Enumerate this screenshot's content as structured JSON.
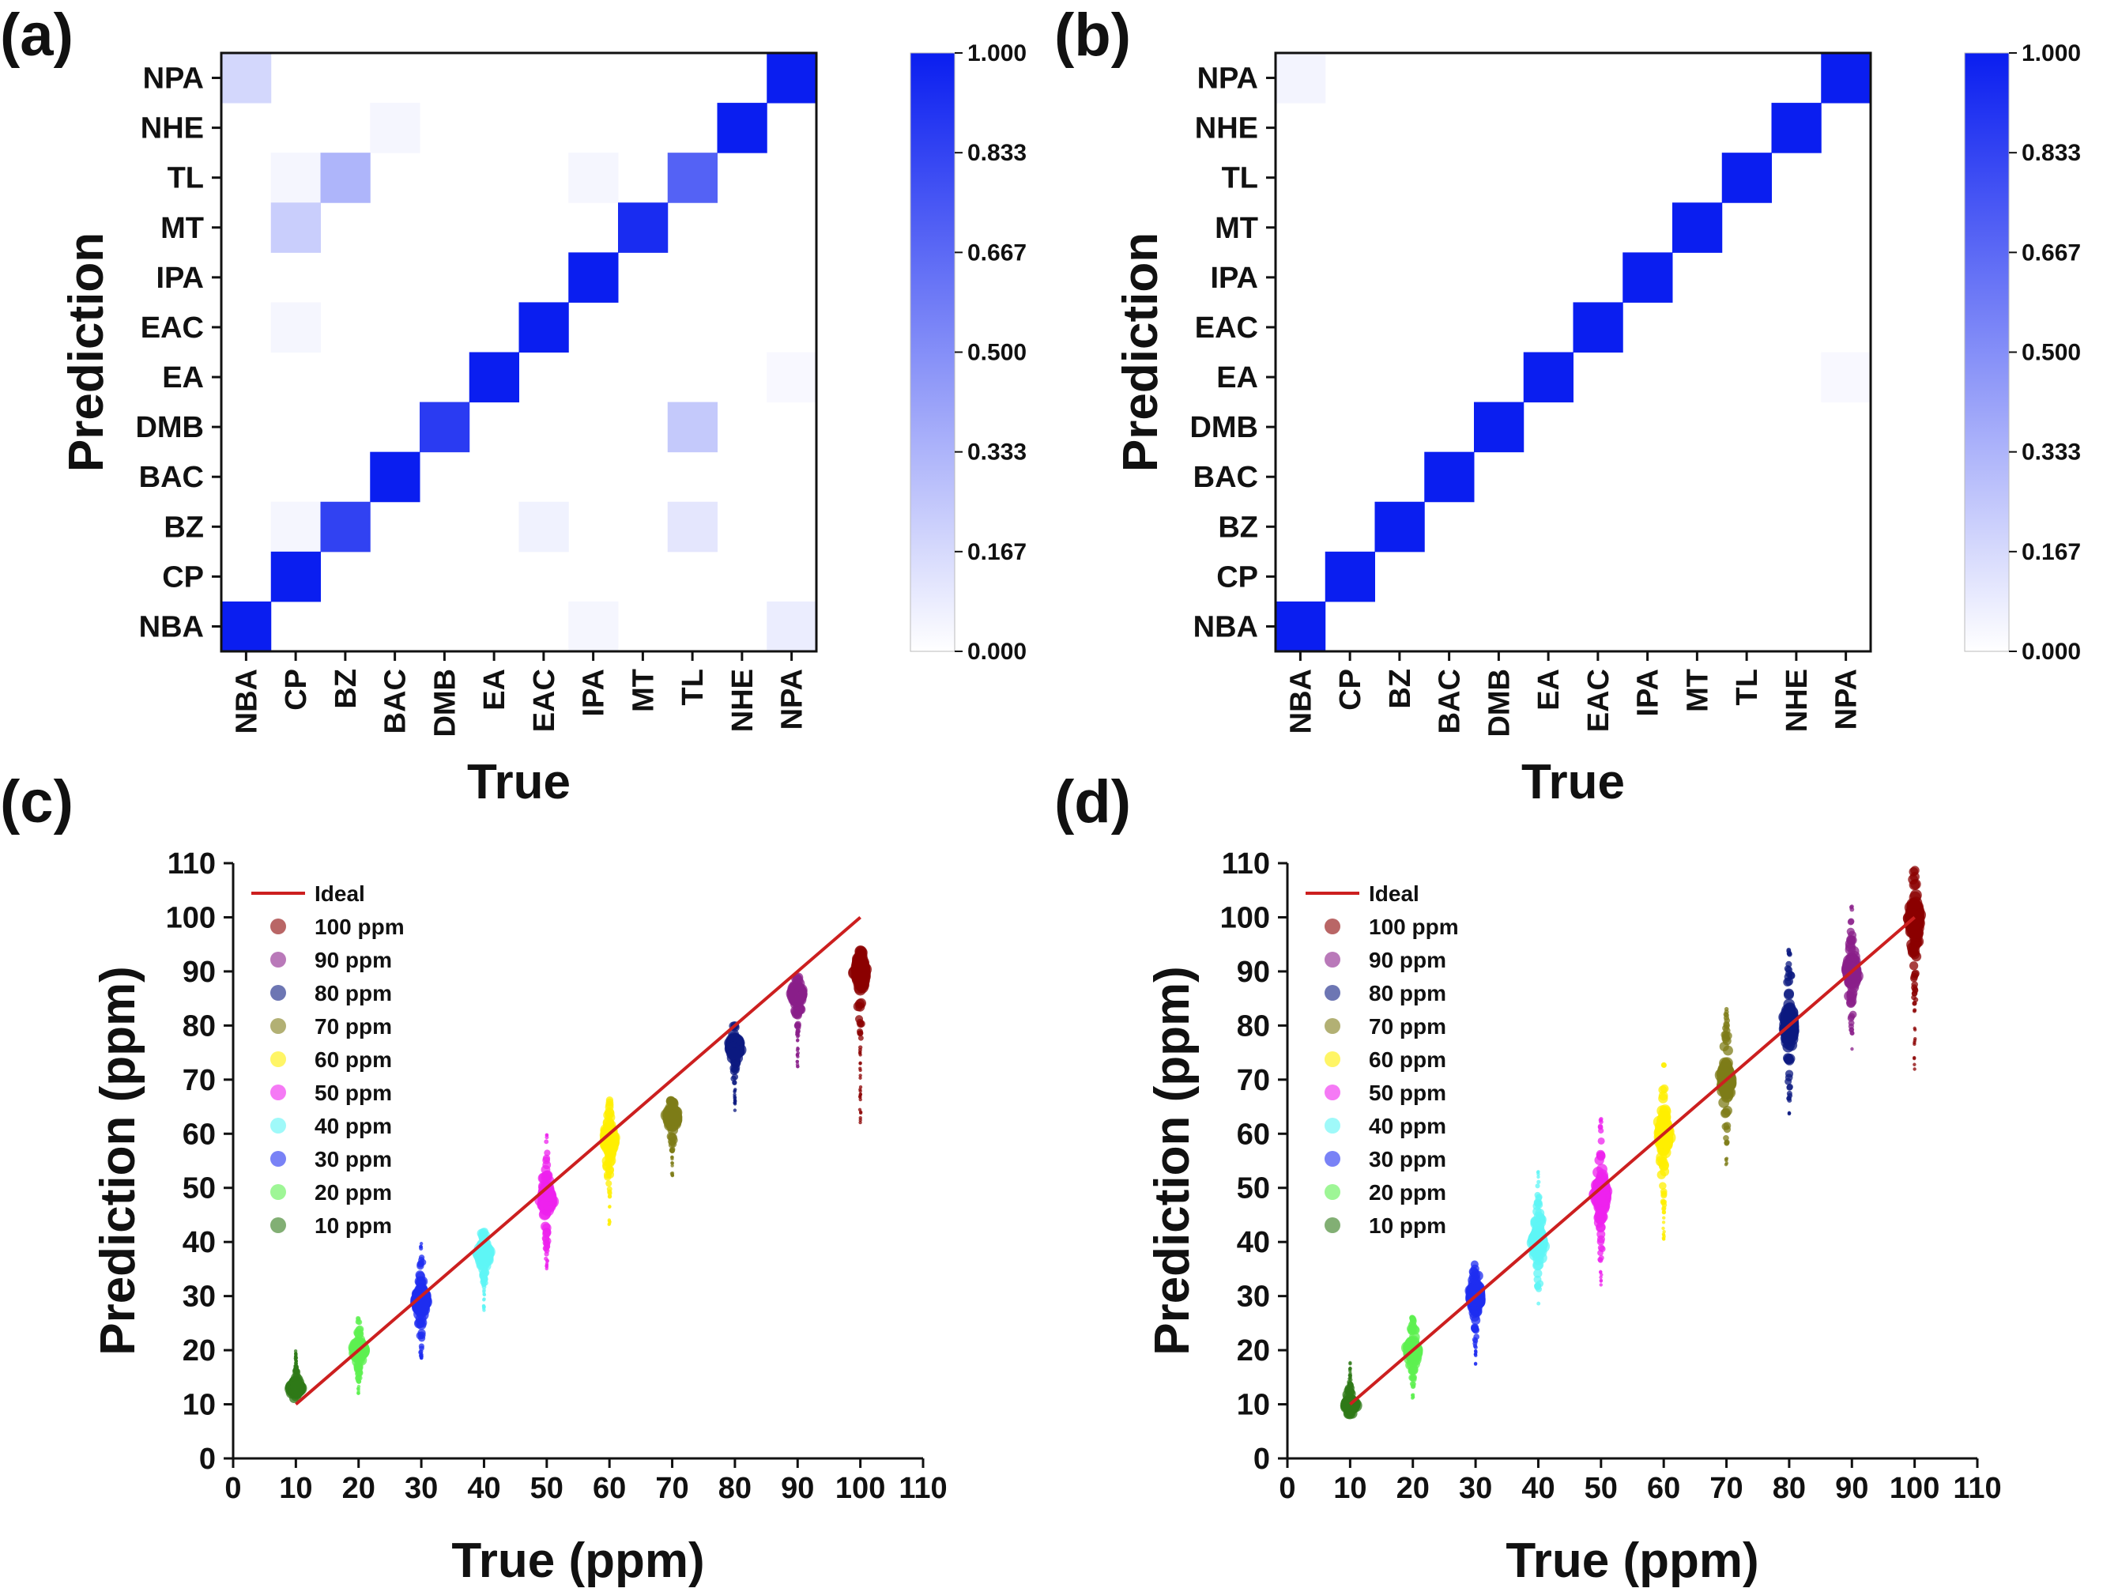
{
  "panel_labels": [
    "(a)",
    "(b)",
    "(c)",
    "(d)"
  ],
  "colors": {
    "cell_max": "#0a1ef0",
    "axis": "#111111",
    "ideal_line": "#cc1f1f",
    "palette": {
      "100 ppm": "#8b0000",
      "90 ppm": "#8a1f8a",
      "80 ppm": "#0c1a80",
      "70 ppm": "#7e7c18",
      "60 ppm": "#ffef00",
      "50 ppm": "#ee22ee",
      "40 ppm": "#5ff5f5",
      "30 ppm": "#1f2ef0",
      "20 ppm": "#5df050",
      "10 ppm": "#2f7a18"
    }
  },
  "chart_data": [
    {
      "type": "heatmap",
      "panel": "(a)",
      "xlabel": "True",
      "ylabel": "Prediction",
      "x_categories": [
        "NBA",
        "CP",
        "BZ",
        "BAC",
        "DMB",
        "EA",
        "EAC",
        "IPA",
        "MT",
        "TL",
        "NHE",
        "NPA"
      ],
      "y_categories": [
        "NPA",
        "NHE",
        "TL",
        "MT",
        "IPA",
        "EAC",
        "EA",
        "DMB",
        "BAC",
        "BZ",
        "CP",
        "NBA"
      ],
      "colorbar": {
        "min": 0.0,
        "max": 1.0,
        "ticks": [
          "1.000",
          "0.833",
          "0.667",
          "0.500",
          "0.333",
          "0.167",
          "0.000"
        ]
      },
      "values": [
        [
          0.18,
          0.0,
          0.0,
          0.0,
          0.0,
          0.0,
          0.0,
          0.0,
          0.0,
          0.0,
          0.0,
          1.0
        ],
        [
          0.0,
          0.0,
          0.0,
          0.04,
          0.0,
          0.0,
          0.0,
          0.0,
          0.0,
          0.0,
          1.0,
          0.0
        ],
        [
          0.0,
          0.04,
          0.33,
          0.0,
          0.0,
          0.0,
          0.0,
          0.04,
          0.0,
          0.7,
          0.0,
          0.0
        ],
        [
          0.0,
          0.22,
          0.0,
          0.0,
          0.0,
          0.0,
          0.0,
          0.0,
          0.94,
          0.0,
          0.0,
          0.0
        ],
        [
          0.0,
          0.0,
          0.0,
          0.0,
          0.0,
          0.0,
          0.0,
          1.0,
          0.0,
          0.0,
          0.0,
          0.0
        ],
        [
          0.0,
          0.04,
          0.0,
          0.0,
          0.0,
          0.0,
          1.0,
          0.0,
          0.0,
          0.0,
          0.0,
          0.0
        ],
        [
          0.0,
          0.0,
          0.0,
          0.0,
          0.0,
          1.0,
          0.0,
          0.0,
          0.0,
          0.0,
          0.0,
          0.03
        ],
        [
          0.0,
          0.0,
          0.0,
          0.0,
          0.87,
          0.0,
          0.0,
          0.0,
          0.0,
          0.24,
          0.0,
          0.0
        ],
        [
          0.0,
          0.0,
          0.0,
          1.0,
          0.0,
          0.0,
          0.0,
          0.0,
          0.0,
          0.0,
          0.0,
          0.0
        ],
        [
          0.0,
          0.04,
          0.84,
          0.0,
          0.0,
          0.0,
          0.06,
          0.0,
          0.0,
          0.11,
          0.0,
          0.0
        ],
        [
          0.0,
          1.0,
          0.0,
          0.0,
          0.0,
          0.0,
          0.0,
          0.0,
          0.0,
          0.0,
          0.0,
          0.0
        ],
        [
          1.0,
          0.0,
          0.0,
          0.0,
          0.0,
          0.0,
          0.0,
          0.04,
          0.0,
          0.0,
          0.0,
          0.08
        ]
      ]
    },
    {
      "type": "heatmap",
      "panel": "(b)",
      "xlabel": "True",
      "ylabel": "Prediction",
      "x_categories": [
        "NBA",
        "CP",
        "BZ",
        "BAC",
        "DMB",
        "EA",
        "EAC",
        "IPA",
        "MT",
        "TL",
        "NHE",
        "NPA"
      ],
      "y_categories": [
        "NPA",
        "NHE",
        "TL",
        "MT",
        "IPA",
        "EAC",
        "EA",
        "DMB",
        "BAC",
        "BZ",
        "CP",
        "NBA"
      ],
      "colorbar": {
        "min": 0.0,
        "max": 1.0,
        "ticks": [
          "1.000",
          "0.833",
          "0.667",
          "0.500",
          "0.333",
          "0.167",
          "0.000"
        ]
      },
      "values": [
        [
          0.05,
          0.0,
          0.0,
          0.0,
          0.0,
          0.0,
          0.0,
          0.0,
          0.0,
          0.0,
          0.0,
          1.0
        ],
        [
          0.0,
          0.0,
          0.0,
          0.0,
          0.0,
          0.0,
          0.0,
          0.0,
          0.0,
          0.0,
          1.0,
          0.0
        ],
        [
          0.0,
          0.0,
          0.0,
          0.0,
          0.0,
          0.0,
          0.0,
          0.0,
          0.0,
          1.0,
          0.0,
          0.0
        ],
        [
          0.0,
          0.0,
          0.0,
          0.0,
          0.0,
          0.0,
          0.0,
          0.0,
          1.0,
          0.0,
          0.0,
          0.0
        ],
        [
          0.0,
          0.0,
          0.0,
          0.0,
          0.0,
          0.0,
          0.0,
          1.0,
          0.0,
          0.0,
          0.0,
          0.0
        ],
        [
          0.0,
          0.0,
          0.0,
          0.0,
          0.0,
          0.0,
          1.0,
          0.0,
          0.0,
          0.0,
          0.0,
          0.0
        ],
        [
          0.0,
          0.0,
          0.0,
          0.0,
          0.0,
          1.0,
          0.0,
          0.0,
          0.0,
          0.0,
          0.0,
          0.03
        ],
        [
          0.0,
          0.0,
          0.0,
          0.0,
          1.0,
          0.0,
          0.0,
          0.0,
          0.0,
          0.0,
          0.0,
          0.0
        ],
        [
          0.0,
          0.0,
          0.0,
          1.0,
          0.0,
          0.0,
          0.0,
          0.0,
          0.0,
          0.0,
          0.0,
          0.0
        ],
        [
          0.0,
          0.0,
          1.0,
          0.0,
          0.0,
          0.0,
          0.0,
          0.0,
          0.0,
          0.0,
          0.0,
          0.0
        ],
        [
          0.0,
          1.0,
          0.0,
          0.0,
          0.0,
          0.0,
          0.0,
          0.0,
          0.0,
          0.0,
          0.0,
          0.0
        ],
        [
          1.0,
          0.0,
          0.0,
          0.0,
          0.0,
          0.0,
          0.0,
          0.0,
          0.0,
          0.0,
          0.0,
          0.0
        ]
      ]
    },
    {
      "type": "scatter",
      "panel": "(c)",
      "xlabel": "True (ppm)",
      "ylabel": "Prediction (ppm)",
      "xlim": [
        0,
        110
      ],
      "ylim": [
        0,
        110
      ],
      "xticks": [
        0,
        10,
        20,
        30,
        40,
        50,
        60,
        70,
        80,
        90,
        100,
        110
      ],
      "yticks": [
        0,
        10,
        20,
        30,
        40,
        50,
        60,
        70,
        80,
        90,
        100,
        110
      ],
      "ideal_line": {
        "label": "Ideal",
        "x": [
          10,
          100
        ],
        "y": [
          10,
          100
        ]
      },
      "legend": [
        "Ideal",
        "100 ppm",
        "90 ppm",
        "80 ppm",
        "70 ppm",
        "60 ppm",
        "50 ppm",
        "40 ppm",
        "30 ppm",
        "20 ppm",
        "10 ppm"
      ],
      "series": [
        {
          "name": "10 ppm",
          "true": 10,
          "center": 13,
          "low": 11,
          "high": 20
        },
        {
          "name": "20 ppm",
          "true": 20,
          "center": 20,
          "low": 12,
          "high": 26
        },
        {
          "name": "30 ppm",
          "true": 30,
          "center": 29,
          "low": 18,
          "high": 40
        },
        {
          "name": "40 ppm",
          "true": 40,
          "center": 38,
          "low": 27,
          "high": 42
        },
        {
          "name": "50 ppm",
          "true": 50,
          "center": 48,
          "low": 35,
          "high": 60
        },
        {
          "name": "60 ppm",
          "true": 60,
          "center": 59,
          "low": 43,
          "high": 67
        },
        {
          "name": "70 ppm",
          "true": 70,
          "center": 63,
          "low": 52,
          "high": 67
        },
        {
          "name": "80 ppm",
          "true": 80,
          "center": 76,
          "low": 64,
          "high": 80
        },
        {
          "name": "90 ppm",
          "true": 90,
          "center": 86,
          "low": 72,
          "high": 89
        },
        {
          "name": "100 ppm",
          "true": 100,
          "center": 90,
          "low": 62,
          "high": 94
        }
      ]
    },
    {
      "type": "scatter",
      "panel": "(d)",
      "xlabel": "True (ppm)",
      "ylabel": "Prediction (ppm)",
      "xlim": [
        0,
        110
      ],
      "ylim": [
        0,
        110
      ],
      "xticks": [
        0,
        10,
        20,
        30,
        40,
        50,
        60,
        70,
        80,
        90,
        100,
        110
      ],
      "yticks": [
        0,
        10,
        20,
        30,
        40,
        50,
        60,
        70,
        80,
        90,
        100,
        110
      ],
      "ideal_line": {
        "label": "Ideal",
        "x": [
          10,
          100
        ],
        "y": [
          10,
          100
        ]
      },
      "legend": [
        "Ideal",
        "100 ppm",
        "90 ppm",
        "80 ppm",
        "70 ppm",
        "60 ppm",
        "50 ppm",
        "40 ppm",
        "30 ppm",
        "20 ppm",
        "10 ppm"
      ],
      "series": [
        {
          "name": "10 ppm",
          "true": 10,
          "center": 10,
          "low": 8,
          "high": 18
        },
        {
          "name": "20 ppm",
          "true": 20,
          "center": 20,
          "low": 11,
          "high": 27
        },
        {
          "name": "30 ppm",
          "true": 30,
          "center": 30,
          "low": 17,
          "high": 38
        },
        {
          "name": "40 ppm",
          "true": 40,
          "center": 40,
          "low": 28,
          "high": 53
        },
        {
          "name": "50 ppm",
          "true": 50,
          "center": 49,
          "low": 32,
          "high": 63
        },
        {
          "name": "60 ppm",
          "true": 60,
          "center": 60,
          "low": 40,
          "high": 73
        },
        {
          "name": "70 ppm",
          "true": 70,
          "center": 70,
          "low": 54,
          "high": 84
        },
        {
          "name": "80 ppm",
          "true": 80,
          "center": 80,
          "low": 63,
          "high": 96
        },
        {
          "name": "90 ppm",
          "true": 90,
          "center": 90,
          "low": 75,
          "high": 102
        },
        {
          "name": "100 ppm",
          "true": 100,
          "center": 100,
          "low": 71,
          "high": 109
        }
      ]
    }
  ]
}
